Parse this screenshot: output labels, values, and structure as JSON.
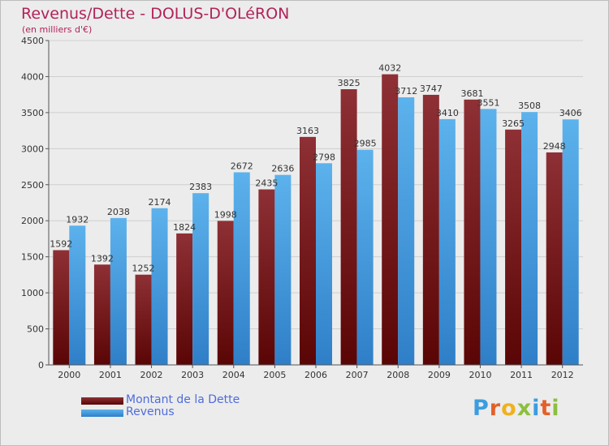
{
  "header": {
    "title": "Revenus/Dette - DOLUS-D'OLéRON",
    "subtitle": "(en milliers d'€)"
  },
  "legend": {
    "items": [
      {
        "label": "Montant de la Dette",
        "color": "#7a1616"
      },
      {
        "label": "Revenus",
        "color": "#3a96dd"
      }
    ]
  },
  "logo": {
    "text": "Proxiti",
    "letters": [
      {
        "ch": "P",
        "color": "#3b9de0"
      },
      {
        "ch": "r",
        "color": "#e2612a"
      },
      {
        "ch": "o",
        "color": "#f0b11e"
      },
      {
        "ch": "x",
        "color": "#8cbf3f"
      },
      {
        "ch": "i",
        "color": "#3b9de0"
      },
      {
        "ch": "t",
        "color": "#e2612a"
      },
      {
        "ch": "i",
        "color": "#8cbf3f"
      }
    ]
  },
  "chart_data": {
    "type": "bar",
    "title": "Revenus/Dette - DOLUS-D'OLéRON",
    "subtitle": "(en milliers d'€)",
    "xlabel": "",
    "ylabel": "",
    "ylim": [
      0,
      4500
    ],
    "yticks": [
      0,
      500,
      1000,
      1500,
      2000,
      2500,
      3000,
      3500,
      4000,
      4500
    ],
    "grid": true,
    "legend_position": "bottom-left",
    "categories": [
      "2000",
      "2001",
      "2002",
      "2003",
      "2004",
      "2005",
      "2006",
      "2007",
      "2008",
      "2009",
      "2010",
      "2011",
      "2012"
    ],
    "series": [
      {
        "name": "Montant de la Dette",
        "color": "#7a1616",
        "values": [
          1592,
          1392,
          1252,
          1824,
          1998,
          2435,
          3163,
          3825,
          4032,
          3747,
          3681,
          3265,
          2948
        ]
      },
      {
        "name": "Revenus",
        "color": "#3a96dd",
        "values": [
          1932,
          2038,
          2174,
          2383,
          2672,
          2636,
          2798,
          2985,
          3712,
          3410,
          3551,
          3508,
          3406
        ]
      }
    ]
  }
}
